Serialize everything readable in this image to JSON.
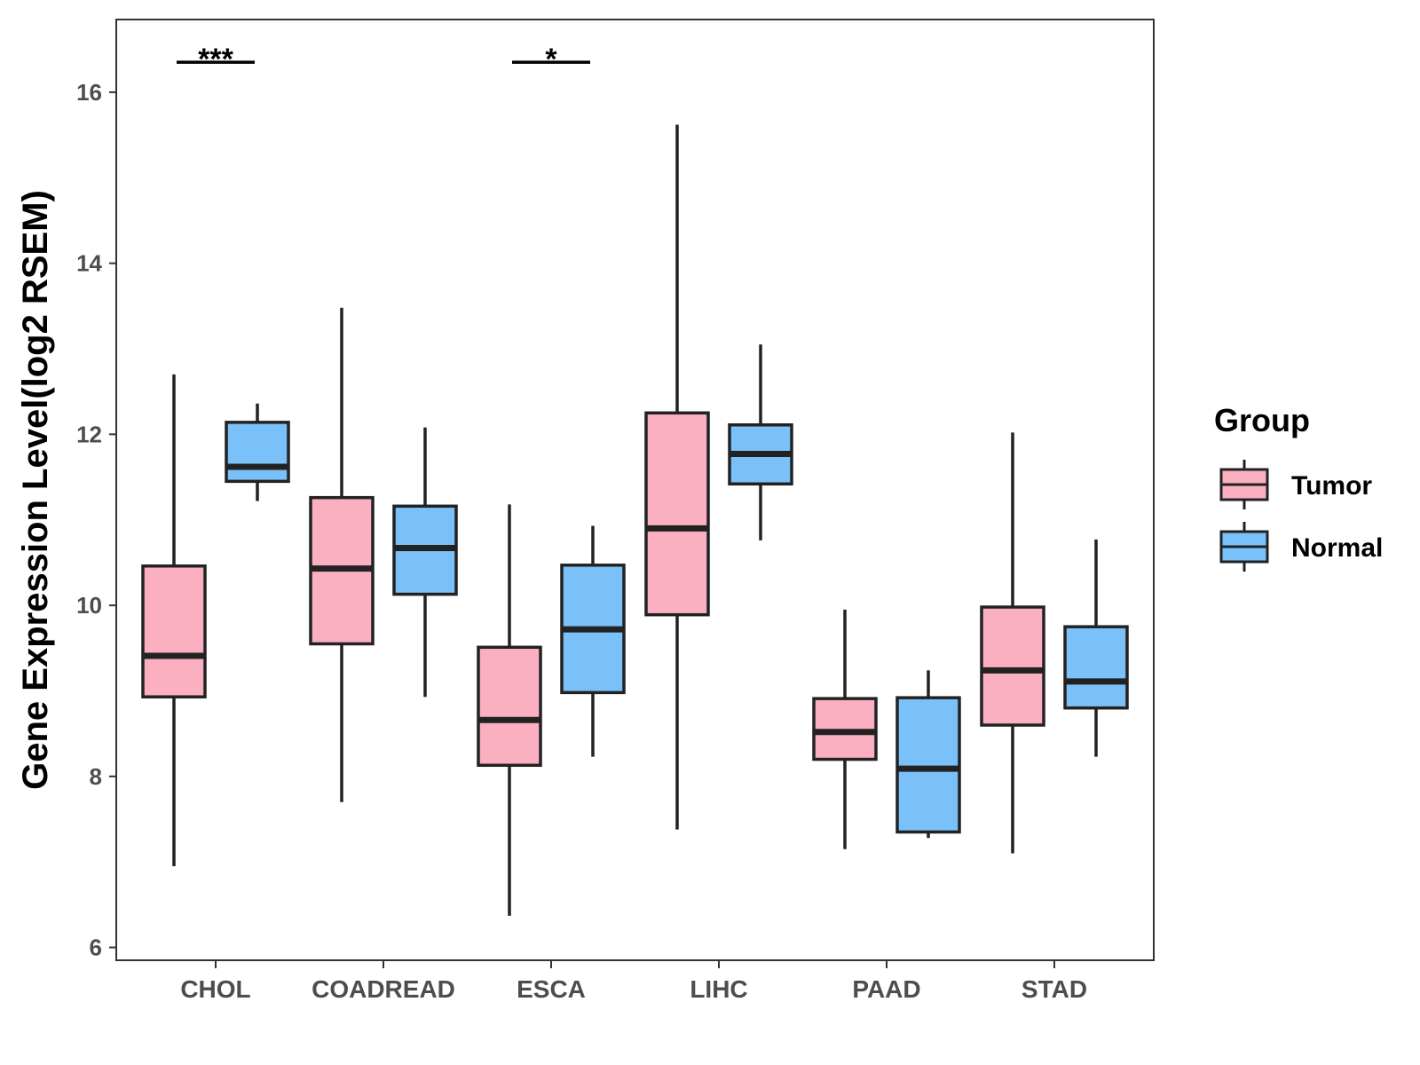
{
  "chart_data": {
    "type": "boxplot",
    "title": "",
    "xlabel": "",
    "ylabel": "Gene Expression Level(log2 RSEM)",
    "ylim": [
      5.85,
      16.85
    ],
    "yticks": [
      6,
      8,
      10,
      12,
      14,
      16
    ],
    "categories": [
      "CHOL",
      "COADREAD",
      "ESCA",
      "LIHC",
      "PAAD",
      "STAD"
    ],
    "legend": {
      "title": "Group",
      "position": "right",
      "entries": [
        {
          "name": "Tumor",
          "color": "#fbb0c1"
        },
        {
          "name": "Normal",
          "color": "#79c1f8"
        }
      ]
    },
    "series": [
      {
        "name": "Tumor",
        "color": "#fbb0c1",
        "boxes": [
          {
            "whisker_low": 6.95,
            "q1": 8.93,
            "median": 9.41,
            "q3": 10.46,
            "whisker_high": 12.7
          },
          {
            "whisker_low": 7.7,
            "q1": 9.55,
            "median": 10.43,
            "q3": 11.26,
            "whisker_high": 13.48
          },
          {
            "whisker_low": 6.37,
            "q1": 8.13,
            "median": 8.66,
            "q3": 9.51,
            "whisker_high": 11.18
          },
          {
            "whisker_low": 7.38,
            "q1": 9.89,
            "median": 10.9,
            "q3": 12.25,
            "whisker_high": 15.62
          },
          {
            "whisker_low": 7.15,
            "q1": 8.2,
            "median": 8.52,
            "q3": 8.91,
            "whisker_high": 9.95
          },
          {
            "whisker_low": 7.1,
            "q1": 8.6,
            "median": 9.24,
            "q3": 9.98,
            "whisker_high": 12.02
          }
        ]
      },
      {
        "name": "Normal",
        "color": "#79c1f8",
        "boxes": [
          {
            "whisker_low": 11.22,
            "q1": 11.45,
            "median": 11.62,
            "q3": 12.14,
            "whisker_high": 12.36
          },
          {
            "whisker_low": 8.93,
            "q1": 10.13,
            "median": 10.67,
            "q3": 11.16,
            "whisker_high": 12.08
          },
          {
            "whisker_low": 8.23,
            "q1": 8.98,
            "median": 9.72,
            "q3": 10.47,
            "whisker_high": 10.93
          },
          {
            "whisker_low": 10.76,
            "q1": 11.42,
            "median": 11.77,
            "q3": 12.11,
            "whisker_high": 13.05
          },
          {
            "whisker_low": 7.28,
            "q1": 7.35,
            "median": 8.09,
            "q3": 8.92,
            "whisker_high": 9.24
          },
          {
            "whisker_low": 8.23,
            "q1": 8.8,
            "median": 9.11,
            "q3": 9.75,
            "whisker_high": 10.77
          }
        ]
      }
    ],
    "significance": [
      {
        "category": "CHOL",
        "label": "***",
        "y": 16.35
      },
      {
        "category": "ESCA",
        "label": "*",
        "y": 16.35
      }
    ]
  }
}
